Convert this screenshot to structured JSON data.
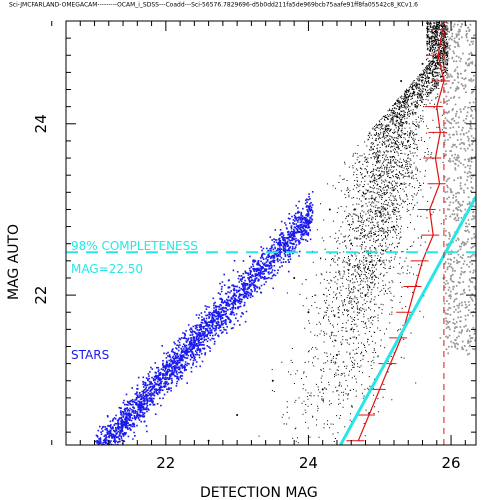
{
  "header": "Sci-JMCFARLAND-OMEGACAM---------OCAM_i_SDSS---Coadd---Sci-56576.7829696-d5b0dd211fa5de969bcb75aafe91ff8fa05542c8_KCv1.6",
  "chart_data": {
    "type": "scatter",
    "title": "",
    "xlabel": "DETECTION MAG",
    "ylabel": "MAG AUTO",
    "xlim": [
      20.6,
      26.35
    ],
    "ylim": [
      20.25,
      25.2
    ],
    "xticks": [
      22,
      24,
      26
    ],
    "yticks": [
      22,
      24
    ],
    "xtick_labels": [
      "22",
      "24",
      "26"
    ],
    "ytick_labels": [
      "22",
      "24"
    ],
    "grid": false,
    "series": [
      {
        "name": "",
        "color": "#000000",
        "description_points": "galaxies cloud",
        "points": [
          [
            24.2,
            20.9
          ],
          [
            24.4,
            21.3
          ],
          [
            24.6,
            21.6
          ],
          [
            24.8,
            22.0
          ],
          [
            25.0,
            22.4
          ],
          [
            25.2,
            22.8
          ],
          [
            25.3,
            23.3
          ],
          [
            25.4,
            23.8
          ],
          [
            25.5,
            24.2
          ],
          [
            25.6,
            24.7
          ],
          [
            23.5,
            21.0
          ],
          [
            23.0,
            20.6
          ],
          [
            24.0,
            21.8
          ],
          [
            24.6,
            22.6
          ],
          [
            25.0,
            23.4
          ],
          [
            25.3,
            24.5
          ],
          [
            25.7,
            25.0
          ],
          [
            22.6,
            20.3
          ],
          [
            23.8,
            22.2
          ],
          [
            24.3,
            23.0
          ]
        ]
      },
      {
        "name": "STARS",
        "color": "#1a1aee",
        "points": [
          [
            21.2,
            20.3
          ],
          [
            21.5,
            20.6
          ],
          [
            21.8,
            20.9
          ],
          [
            22.1,
            21.2
          ],
          [
            22.4,
            21.5
          ],
          [
            22.7,
            21.8
          ],
          [
            23.0,
            22.1
          ],
          [
            23.3,
            22.4
          ],
          [
            23.6,
            22.7
          ],
          [
            23.9,
            22.95
          ]
        ]
      },
      {
        "name": "",
        "color": "#999999",
        "description_points": "grey points beyond completeness",
        "points": [
          [
            25.9,
            24.9
          ],
          [
            26.0,
            24.3
          ],
          [
            26.1,
            23.6
          ],
          [
            26.2,
            23.0
          ],
          [
            25.95,
            22.3
          ],
          [
            26.1,
            21.8
          ],
          [
            26.25,
            24.7
          ],
          [
            26.0,
            23.2
          ],
          [
            25.85,
            21.5
          ],
          [
            26.15,
            22.6
          ]
        ]
      }
    ],
    "completeness_level": 22.5,
    "completeness_label": "98% COMPLETENESS",
    "mag_label": "MAG=22.50",
    "vertical_dashed_x": 25.9,
    "cyan_line": [
      [
        24.45,
        20.25
      ],
      [
        26.35,
        23.15
      ]
    ],
    "red_curve": [
      [
        25.88,
        25.1
      ],
      [
        25.82,
        24.8
      ],
      [
        25.9,
        24.5
      ],
      [
        25.8,
        24.2
      ],
      [
        25.85,
        23.9
      ],
      [
        25.78,
        23.6
      ],
      [
        25.84,
        23.3
      ],
      [
        25.7,
        23.0
      ],
      [
        25.75,
        22.7
      ],
      [
        25.6,
        22.4
      ],
      [
        25.5,
        22.1
      ],
      [
        25.4,
        21.8
      ],
      [
        25.3,
        21.5
      ],
      [
        25.15,
        21.2
      ],
      [
        25.0,
        20.9
      ],
      [
        24.85,
        20.6
      ],
      [
        24.7,
        20.3
      ]
    ],
    "stars_label": "STARS"
  },
  "colors": {
    "galaxies": "#000000",
    "stars": "#1a1aee",
    "grey": "#999999",
    "cyan": "#28e6e6",
    "red": "#e01010"
  }
}
